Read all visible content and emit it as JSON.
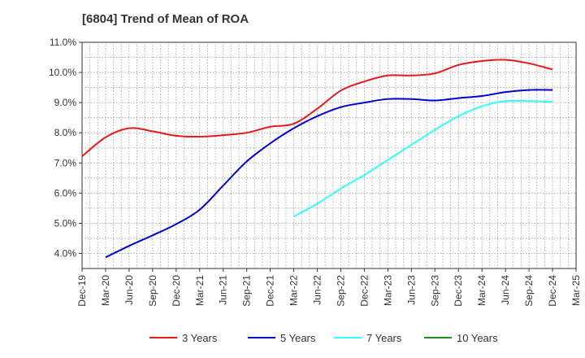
{
  "chart_data": {
    "type": "line",
    "title": "[6804]  Trend of Mean of ROA",
    "xlabel": "",
    "ylabel": "",
    "x": [
      "Dec-19",
      "Mar-20",
      "Jun-20",
      "Sep-20",
      "Dec-20",
      "Mar-21",
      "Jun-21",
      "Sep-21",
      "Dec-21",
      "Mar-22",
      "Jun-22",
      "Sep-22",
      "Dec-22",
      "Mar-23",
      "Jun-23",
      "Sep-23",
      "Dec-23",
      "Mar-24",
      "Jun-24",
      "Sep-24",
      "Dec-24",
      "Mar-25"
    ],
    "ylim": [
      3.5,
      11.0
    ],
    "yticks": [
      4.0,
      5.0,
      6.0,
      7.0,
      8.0,
      9.0,
      10.0,
      11.0
    ],
    "ytick_labels": [
      "4.0%",
      "5.0%",
      "6.0%",
      "7.0%",
      "8.0%",
      "9.0%",
      "10.0%",
      "11.0%"
    ],
    "grid": true,
    "legend_position": "bottom",
    "series": [
      {
        "name": "3 Years",
        "color": "#e41a1c",
        "values": [
          7.22,
          7.85,
          8.15,
          8.05,
          7.9,
          7.87,
          7.92,
          8.0,
          8.2,
          8.3,
          8.8,
          9.4,
          9.7,
          9.9,
          9.9,
          9.97,
          10.25,
          10.38,
          10.42,
          10.3,
          10.1,
          null
        ]
      },
      {
        "name": "5 Years",
        "color": "#0000cc",
        "values": [
          null,
          3.87,
          4.25,
          4.6,
          4.97,
          5.45,
          6.25,
          7.05,
          7.65,
          8.15,
          8.55,
          8.85,
          9.0,
          9.12,
          9.12,
          9.07,
          9.15,
          9.22,
          9.35,
          9.42,
          9.42,
          null
        ]
      },
      {
        "name": "7 Years",
        "color": "#33ffff",
        "values": [
          null,
          null,
          null,
          null,
          null,
          null,
          null,
          null,
          null,
          5.22,
          5.65,
          6.15,
          6.6,
          7.1,
          7.6,
          8.1,
          8.55,
          8.88,
          9.05,
          9.05,
          9.03,
          null
        ]
      },
      {
        "name": "10 Years",
        "color": "#228b22",
        "values": [
          null,
          null,
          null,
          null,
          null,
          null,
          null,
          null,
          null,
          null,
          null,
          null,
          null,
          null,
          null,
          null,
          null,
          null,
          null,
          null,
          null,
          null
        ]
      }
    ]
  }
}
